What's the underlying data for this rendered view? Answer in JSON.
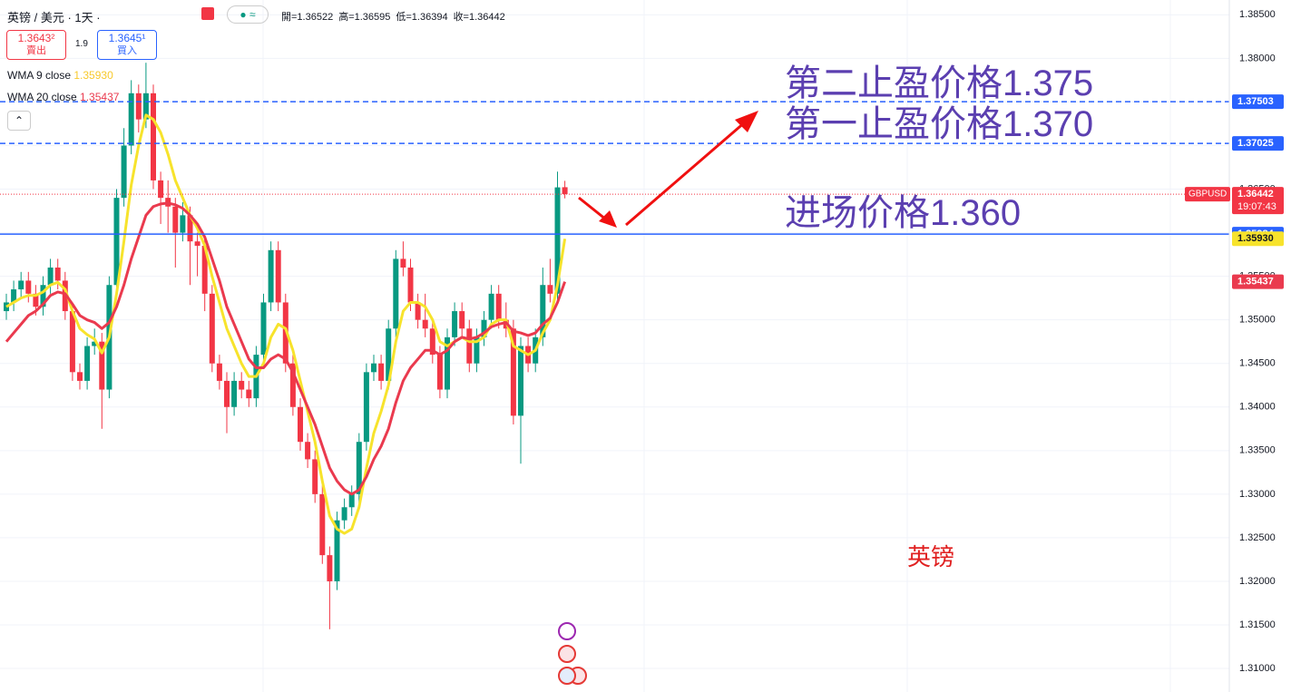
{
  "header": {
    "symbol": "英镑 / 美元 · 1天 ·",
    "ohlc_text": [
      "開=1.36522",
      "高=1.36595",
      "低=1.36394",
      "收=1.36442"
    ],
    "sell": {
      "price": "1.3643²",
      "label": "賣出"
    },
    "spread": "1.9",
    "buy": {
      "price": "1.3645¹",
      "label": "買入"
    }
  },
  "chart_data": {
    "type": "candlestick",
    "up_color": "#089981",
    "down_color": "#f23645",
    "ylim": [
      1.3073,
      1.3867
    ],
    "yticks": [
      {
        "value": 1.385,
        "label": "1.38500"
      },
      {
        "value": 1.38,
        "label": "1.38000"
      },
      {
        "value": 1.375,
        "label": "1.37500"
      },
      {
        "value": 1.37,
        "label": "1.37000"
      },
      {
        "value": 1.365,
        "label": "1.36500"
      },
      {
        "value": 1.36,
        "label": "1.36000"
      },
      {
        "value": 1.355,
        "label": "1.35500"
      },
      {
        "value": 1.35,
        "label": "1.35000"
      },
      {
        "value": 1.345,
        "label": "1.34500"
      },
      {
        "value": 1.34,
        "label": "1.34000"
      },
      {
        "value": 1.335,
        "label": "1.33500"
      },
      {
        "value": 1.33,
        "label": "1.33000"
      },
      {
        "value": 1.325,
        "label": "1.32500"
      },
      {
        "value": 1.32,
        "label": "1.32000"
      },
      {
        "value": 1.315,
        "label": "1.31500"
      },
      {
        "value": 1.31,
        "label": "1.31000"
      }
    ],
    "ohlc": [
      [
        1.351,
        1.353,
        1.35,
        1.352
      ],
      [
        1.352,
        1.3545,
        1.351,
        1.3535
      ],
      [
        1.3535,
        1.3555,
        1.3525,
        1.3545
      ],
      [
        1.3545,
        1.3555,
        1.352,
        1.353
      ],
      [
        1.353,
        1.354,
        1.3505,
        1.3515
      ],
      [
        1.3515,
        1.355,
        1.3505,
        1.354
      ],
      [
        1.354,
        1.357,
        1.353,
        1.356
      ],
      [
        1.356,
        1.357,
        1.3535,
        1.3545
      ],
      [
        1.3545,
        1.3555,
        1.35,
        1.351
      ],
      [
        1.351,
        1.352,
        1.343,
        1.344
      ],
      [
        1.344,
        1.345,
        1.342,
        1.343
      ],
      [
        1.343,
        1.348,
        1.342,
        1.347
      ],
      [
        1.347,
        1.349,
        1.346,
        1.3475
      ],
      [
        1.3475,
        1.3485,
        1.3375,
        1.342
      ],
      [
        1.342,
        1.355,
        1.341,
        1.354
      ],
      [
        1.354,
        1.365,
        1.353,
        1.364
      ],
      [
        1.364,
        1.372,
        1.363,
        1.37
      ],
      [
        1.37,
        1.3775,
        1.369,
        1.376
      ],
      [
        1.376,
        1.377,
        1.3715,
        1.373
      ],
      [
        1.373,
        1.3795,
        1.372,
        1.376
      ],
      [
        1.376,
        1.377,
        1.365,
        1.366
      ],
      [
        1.366,
        1.367,
        1.361,
        1.364
      ],
      [
        1.364,
        1.366,
        1.36,
        1.363
      ],
      [
        1.363,
        1.364,
        1.356,
        1.36
      ],
      [
        1.36,
        1.3635,
        1.359,
        1.362
      ],
      [
        1.362,
        1.363,
        1.354,
        1.359
      ],
      [
        1.359,
        1.36,
        1.355,
        1.3585
      ],
      [
        1.3585,
        1.3595,
        1.351,
        1.353
      ],
      [
        1.353,
        1.354,
        1.344,
        1.345
      ],
      [
        1.345,
        1.346,
        1.342,
        1.343
      ],
      [
        1.343,
        1.344,
        1.337,
        1.34
      ],
      [
        1.34,
        1.344,
        1.339,
        1.343
      ],
      [
        1.343,
        1.344,
        1.341,
        1.342
      ],
      [
        1.342,
        1.343,
        1.34,
        1.341
      ],
      [
        1.341,
        1.347,
        1.34,
        1.346
      ],
      [
        1.346,
        1.353,
        1.345,
        1.352
      ],
      [
        1.352,
        1.359,
        1.351,
        1.358
      ],
      [
        1.358,
        1.359,
        1.351,
        1.352
      ],
      [
        1.352,
        1.353,
        1.344,
        1.345
      ],
      [
        1.345,
        1.346,
        1.339,
        1.34
      ],
      [
        1.34,
        1.341,
        1.335,
        1.336
      ],
      [
        1.336,
        1.337,
        1.333,
        1.334
      ],
      [
        1.334,
        1.335,
        1.329,
        1.33
      ],
      [
        1.33,
        1.331,
        1.322,
        1.323
      ],
      [
        1.323,
        1.324,
        1.3145,
        1.32
      ],
      [
        1.32,
        1.328,
        1.319,
        1.327
      ],
      [
        1.327,
        1.3295,
        1.326,
        1.3285
      ],
      [
        1.3285,
        1.331,
        1.3275,
        1.33
      ],
      [
        1.33,
        1.337,
        1.329,
        1.336
      ],
      [
        1.336,
        1.345,
        1.335,
        1.344
      ],
      [
        1.344,
        1.346,
        1.343,
        1.345
      ],
      [
        1.345,
        1.346,
        1.342,
        1.343
      ],
      [
        1.343,
        1.35,
        1.342,
        1.349
      ],
      [
        1.349,
        1.358,
        1.348,
        1.357
      ],
      [
        1.357,
        1.359,
        1.355,
        1.356
      ],
      [
        1.356,
        1.357,
        1.351,
        1.352
      ],
      [
        1.352,
        1.353,
        1.349,
        1.35
      ],
      [
        1.35,
        1.353,
        1.348,
        1.349
      ],
      [
        1.349,
        1.35,
        1.345,
        1.346
      ],
      [
        1.346,
        1.347,
        1.341,
        1.342
      ],
      [
        1.342,
        1.349,
        1.341,
        1.348
      ],
      [
        1.348,
        1.352,
        1.347,
        1.351
      ],
      [
        1.351,
        1.352,
        1.348,
        1.349
      ],
      [
        1.349,
        1.35,
        1.344,
        1.345
      ],
      [
        1.345,
        1.349,
        1.344,
        1.348
      ],
      [
        1.348,
        1.351,
        1.347,
        1.35
      ],
      [
        1.35,
        1.354,
        1.349,
        1.353
      ],
      [
        1.353,
        1.354,
        1.349,
        1.35
      ],
      [
        1.35,
        1.352,
        1.348,
        1.349
      ],
      [
        1.349,
        1.35,
        1.338,
        1.339
      ],
      [
        1.339,
        1.348,
        1.3335,
        1.347
      ],
      [
        1.347,
        1.348,
        1.344,
        1.345
      ],
      [
        1.345,
        1.349,
        1.344,
        1.348
      ],
      [
        1.348,
        1.356,
        1.347,
        1.354
      ],
      [
        1.354,
        1.357,
        1.352,
        1.353
      ],
      [
        1.353,
        1.367,
        1.352,
        1.3652
      ],
      [
        1.36522,
        1.36595,
        1.36394,
        1.36442
      ]
    ],
    "series": [
      {
        "name": "WMA 9 close",
        "color": "#f7e32c",
        "last": {
          "value": 1.3593,
          "label": "1.35930"
        },
        "values": [
          1.3515,
          1.352,
          1.3525,
          1.3528,
          1.3528,
          1.3532,
          1.354,
          1.3543,
          1.3535,
          1.351,
          1.349,
          1.3483,
          1.3478,
          1.3462,
          1.348,
          1.353,
          1.359,
          1.3655,
          1.37,
          1.3735,
          1.373,
          1.3715,
          1.369,
          1.366,
          1.364,
          1.362,
          1.3605,
          1.3585,
          1.355,
          1.352,
          1.349,
          1.347,
          1.345,
          1.3435,
          1.3435,
          1.345,
          1.348,
          1.3495,
          1.349,
          1.3465,
          1.343,
          1.3395,
          1.336,
          1.3315,
          1.3275,
          1.326,
          1.3255,
          1.326,
          1.3285,
          1.333,
          1.337,
          1.3395,
          1.3425,
          1.3475,
          1.351,
          1.352,
          1.352,
          1.3515,
          1.35,
          1.3475,
          1.347,
          1.3475,
          1.348,
          1.3475,
          1.3475,
          1.348,
          1.3495,
          1.35,
          1.35,
          1.347,
          1.3465,
          1.346,
          1.3465,
          1.3485,
          1.35,
          1.354,
          1.3593
        ]
      },
      {
        "name": "WMA 20 close",
        "color": "#ea3a4e",
        "last": 1.35437,
        "values": [
          1.3475,
          1.3485,
          1.3495,
          1.3505,
          1.351,
          1.3518,
          1.3528,
          1.3532,
          1.353,
          1.3518,
          1.3505,
          1.35,
          1.3497,
          1.349,
          1.3497,
          1.3515,
          1.354,
          1.357,
          1.3595,
          1.362,
          1.363,
          1.3633,
          1.3634,
          1.3632,
          1.3628,
          1.362,
          1.361,
          1.3595,
          1.357,
          1.3545,
          1.3515,
          1.3495,
          1.3475,
          1.3455,
          1.3445,
          1.3445,
          1.3455,
          1.346,
          1.3455,
          1.344,
          1.342,
          1.34,
          1.338,
          1.3355,
          1.333,
          1.3315,
          1.3305,
          1.33,
          1.3305,
          1.332,
          1.334,
          1.3355,
          1.3375,
          1.3405,
          1.343,
          1.3445,
          1.3455,
          1.3465,
          1.3465,
          1.346,
          1.3465,
          1.3475,
          1.348,
          1.3478,
          1.348,
          1.3485,
          1.3492,
          1.3495,
          1.3497,
          1.3487,
          1.3485,
          1.3482,
          1.3485,
          1.3495,
          1.3502,
          1.352,
          1.35437
        ]
      }
    ],
    "levels": [
      {
        "value": 1.37503,
        "color": "#2962ff",
        "style": "dashed"
      },
      {
        "value": 1.37025,
        "color": "#2962ff",
        "style": "dashed"
      },
      {
        "value": 1.35984,
        "color": "#2962ff",
        "style": "solid"
      }
    ],
    "price_line": {
      "symbol": "GBPUSD",
      "value": 1.36442,
      "countdown": "19:07:43",
      "color": "#f23645"
    },
    "annotations": [
      "第二止盈价格1.375",
      "第一止盈价格1.370",
      "进场价格1.360",
      "英镑"
    ]
  }
}
